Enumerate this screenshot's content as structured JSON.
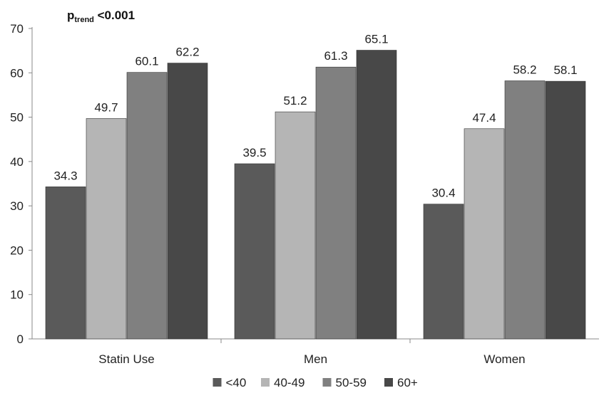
{
  "chart_data": {
    "type": "bar",
    "annotation": {
      "p": "p",
      "sub": "trend",
      "text": "<0.001"
    },
    "categories": [
      "Statin Use",
      "Men",
      "Women"
    ],
    "series": [
      {
        "name": "<40",
        "color": "#5a5a5a",
        "values": [
          34.3,
          39.5,
          30.4
        ]
      },
      {
        "name": "40-49",
        "color": "#b5b5b5",
        "values": [
          49.7,
          51.2,
          47.4
        ]
      },
      {
        "name": "50-59",
        "color": "#808080",
        "values": [
          60.1,
          61.3,
          58.2
        ]
      },
      {
        "name": "60+",
        "color": "#484848",
        "values": [
          62.2,
          65.1,
          58.1
        ]
      }
    ],
    "ylim": [
      0,
      70
    ],
    "yticks": [
      0,
      10,
      20,
      30,
      40,
      50,
      60,
      70
    ],
    "xlabel": "",
    "ylabel": "",
    "grid": false,
    "legend_position": "bottom"
  }
}
